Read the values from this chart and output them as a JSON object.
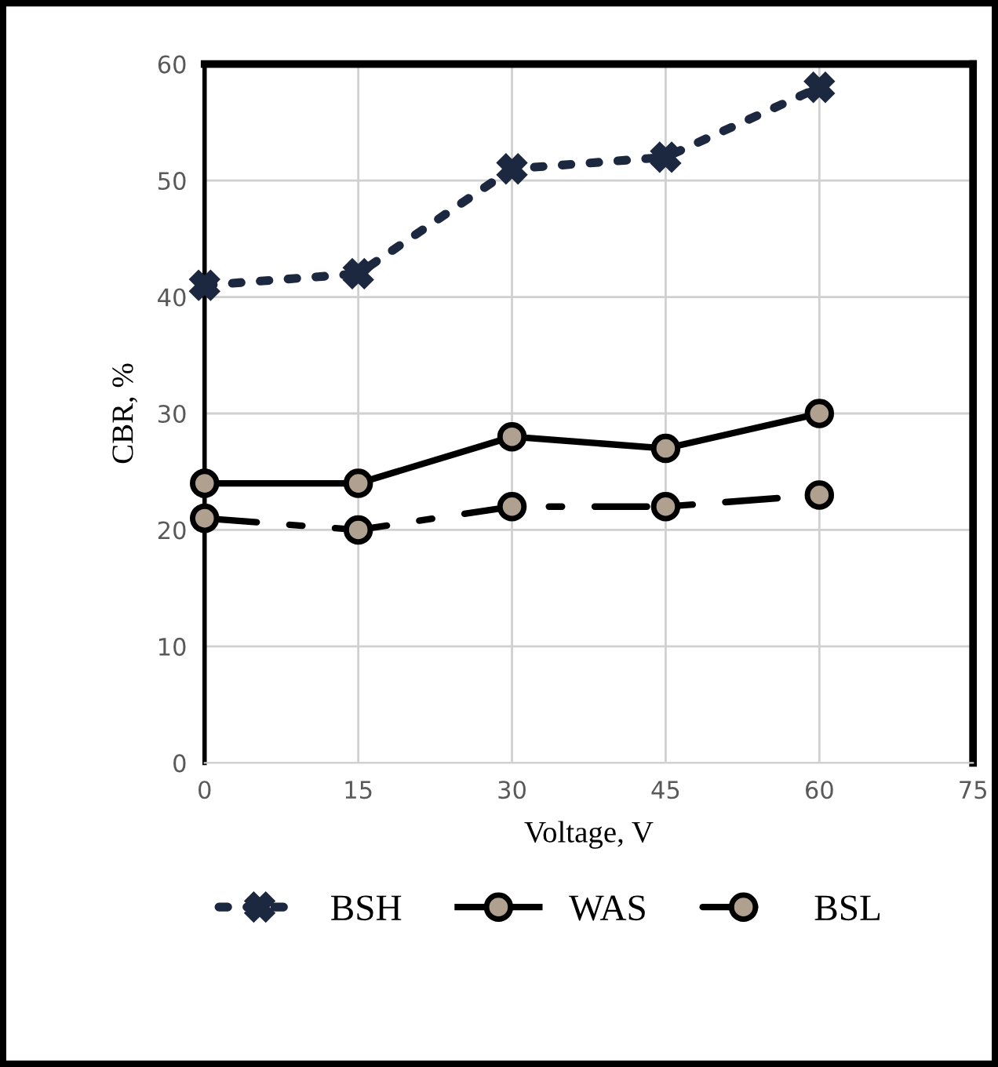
{
  "chart_data": {
    "type": "line",
    "xlabel": "Voltage, V",
    "ylabel": "CBR, %",
    "x": [
      0,
      15,
      30,
      45,
      60
    ],
    "series": [
      {
        "name": "BSH",
        "color": "#1c2740",
        "values": [
          41,
          42,
          51,
          52,
          58
        ],
        "line_style": "dotted",
        "marker": "cross"
      },
      {
        "name": "WAS",
        "color": "#000000",
        "values": [
          24,
          24,
          28,
          27,
          30
        ],
        "line_style": "solid",
        "marker": "circle"
      },
      {
        "name": "BSL",
        "color": "#000000",
        "values": [
          21,
          20,
          22,
          22,
          23
        ],
        "line_style": "dashed",
        "marker": "circle"
      }
    ],
    "xlim": [
      0,
      75
    ],
    "xticks": [
      0,
      15,
      30,
      45,
      60,
      75
    ],
    "ylim": [
      0,
      60
    ],
    "yticks": [
      0,
      10,
      20,
      30,
      40,
      50,
      60
    ],
    "grid": true,
    "legend": "bottom"
  }
}
